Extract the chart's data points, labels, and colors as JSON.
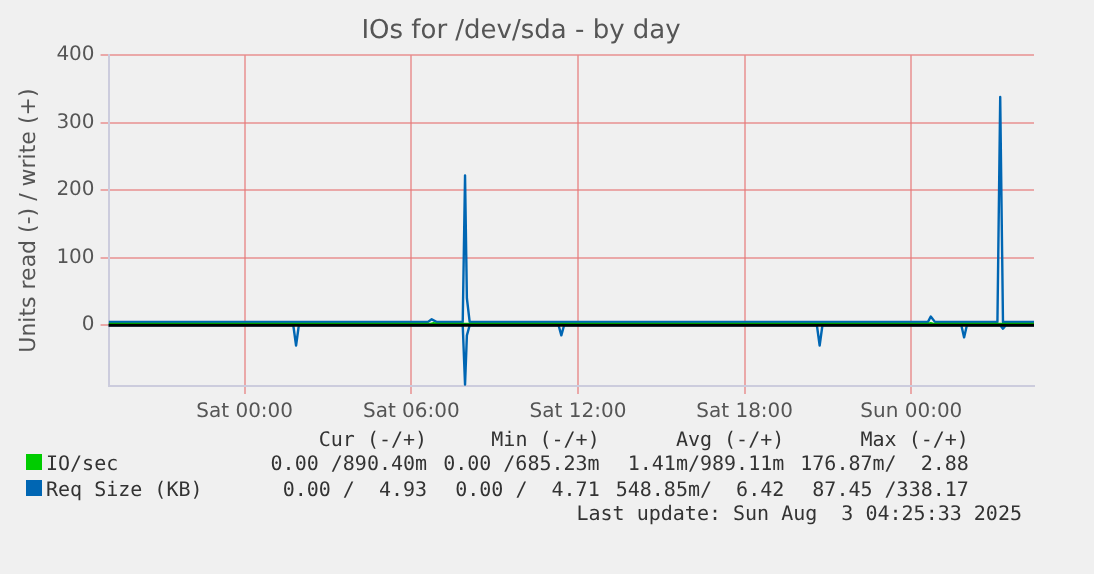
{
  "chart_data": {
    "type": "line",
    "title": "IOs for /dev/sda - by day",
    "ylabel": "Units read (-) / write (+)",
    "xlim": [
      "2025-08-01T19:06",
      "2025-08-03T04:25"
    ],
    "xticks": [
      {
        "value": "2025-08-02T00:00",
        "label": "Sat 00:00"
      },
      {
        "value": "2025-08-02T06:00",
        "label": "Sat 06:00"
      },
      {
        "value": "2025-08-02T12:00",
        "label": "Sat 12:00"
      },
      {
        "value": "2025-08-02T18:00",
        "label": "Sat 18:00"
      },
      {
        "value": "2025-08-03T00:00",
        "label": "Sun 00:00"
      }
    ],
    "ylim": [
      -90,
      400
    ],
    "yticks": [
      0,
      100,
      200,
      300,
      400
    ],
    "grid": true,
    "legend": "bottom",
    "marker": "none",
    "series": [
      {
        "name": "IO/sec",
        "color": "#00cc00",
        "x": [
          "2025-08-01T19:06",
          "2025-08-02T06:42",
          "2025-08-02T06:48",
          "2025-08-02T06:54",
          "2025-08-03T00:36",
          "2025-08-03T00:42",
          "2025-08-03T00:48",
          "2025-08-03T04:25"
        ],
        "values": [
          2,
          2,
          3,
          2,
          2,
          3,
          2,
          2
        ]
      },
      {
        "name": "Req Size (KB)",
        "color": "#0066b3",
        "x": [
          "2025-08-01T19:06",
          "2025-08-02T06:36",
          "2025-08-02T06:44",
          "2025-08-02T06:54",
          "2025-08-02T07:51",
          "2025-08-02T07:56",
          "2025-08-02T08:00",
          "2025-08-02T08:06",
          "2025-08-03T00:36",
          "2025-08-03T00:42",
          "2025-08-03T00:51",
          "2025-08-03T03:06",
          "2025-08-03T03:12",
          "2025-08-03T03:18",
          "2025-08-03T04:25"
        ],
        "values": [
          5,
          5,
          9,
          5,
          5,
          222,
          40,
          5,
          5,
          13,
          5,
          5,
          338,
          5,
          5
        ]
      },
      {
        "color": "#0066b3",
        "x": [
          "2025-08-01T19:06",
          "2025-08-02T01:45",
          "2025-08-02T01:51",
          "2025-08-02T01:57",
          "2025-08-02T07:51",
          "2025-08-02T07:56",
          "2025-08-02T08:00",
          "2025-08-02T08:06",
          "2025-08-02T11:18",
          "2025-08-02T11:24",
          "2025-08-02T11:30",
          "2025-08-02T20:36",
          "2025-08-02T20:42",
          "2025-08-02T20:48",
          "2025-08-03T01:48",
          "2025-08-03T01:54",
          "2025-08-03T02:00",
          "2025-08-03T03:12",
          "2025-08-03T03:18",
          "2025-08-03T03:24",
          "2025-08-03T04:25"
        ],
        "values": [
          0,
          0,
          -30,
          0,
          0,
          -88,
          -15,
          0,
          0,
          -15,
          0,
          0,
          -30,
          0,
          0,
          -18,
          0,
          0,
          -5,
          0,
          0
        ]
      }
    ],
    "ref_lines": [
      {
        "axis": "y",
        "value": 0,
        "color": "#000000"
      }
    ],
    "annotations": [
      "Cur (-/+)",
      "Min (-/+)",
      "Avg (-/+)",
      "Max (-/+)",
      "0.00 /890.40m",
      "0.00 /685.23m",
      "1.41m/989.11m",
      "176.87m/  2.88",
      "0.00 /  4.93",
      "0.00 /  4.71",
      "548.85m/  6.42",
      "87.45 /338.17",
      "Last update: Sun Aug  3 04:25:33 2025"
    ]
  }
}
